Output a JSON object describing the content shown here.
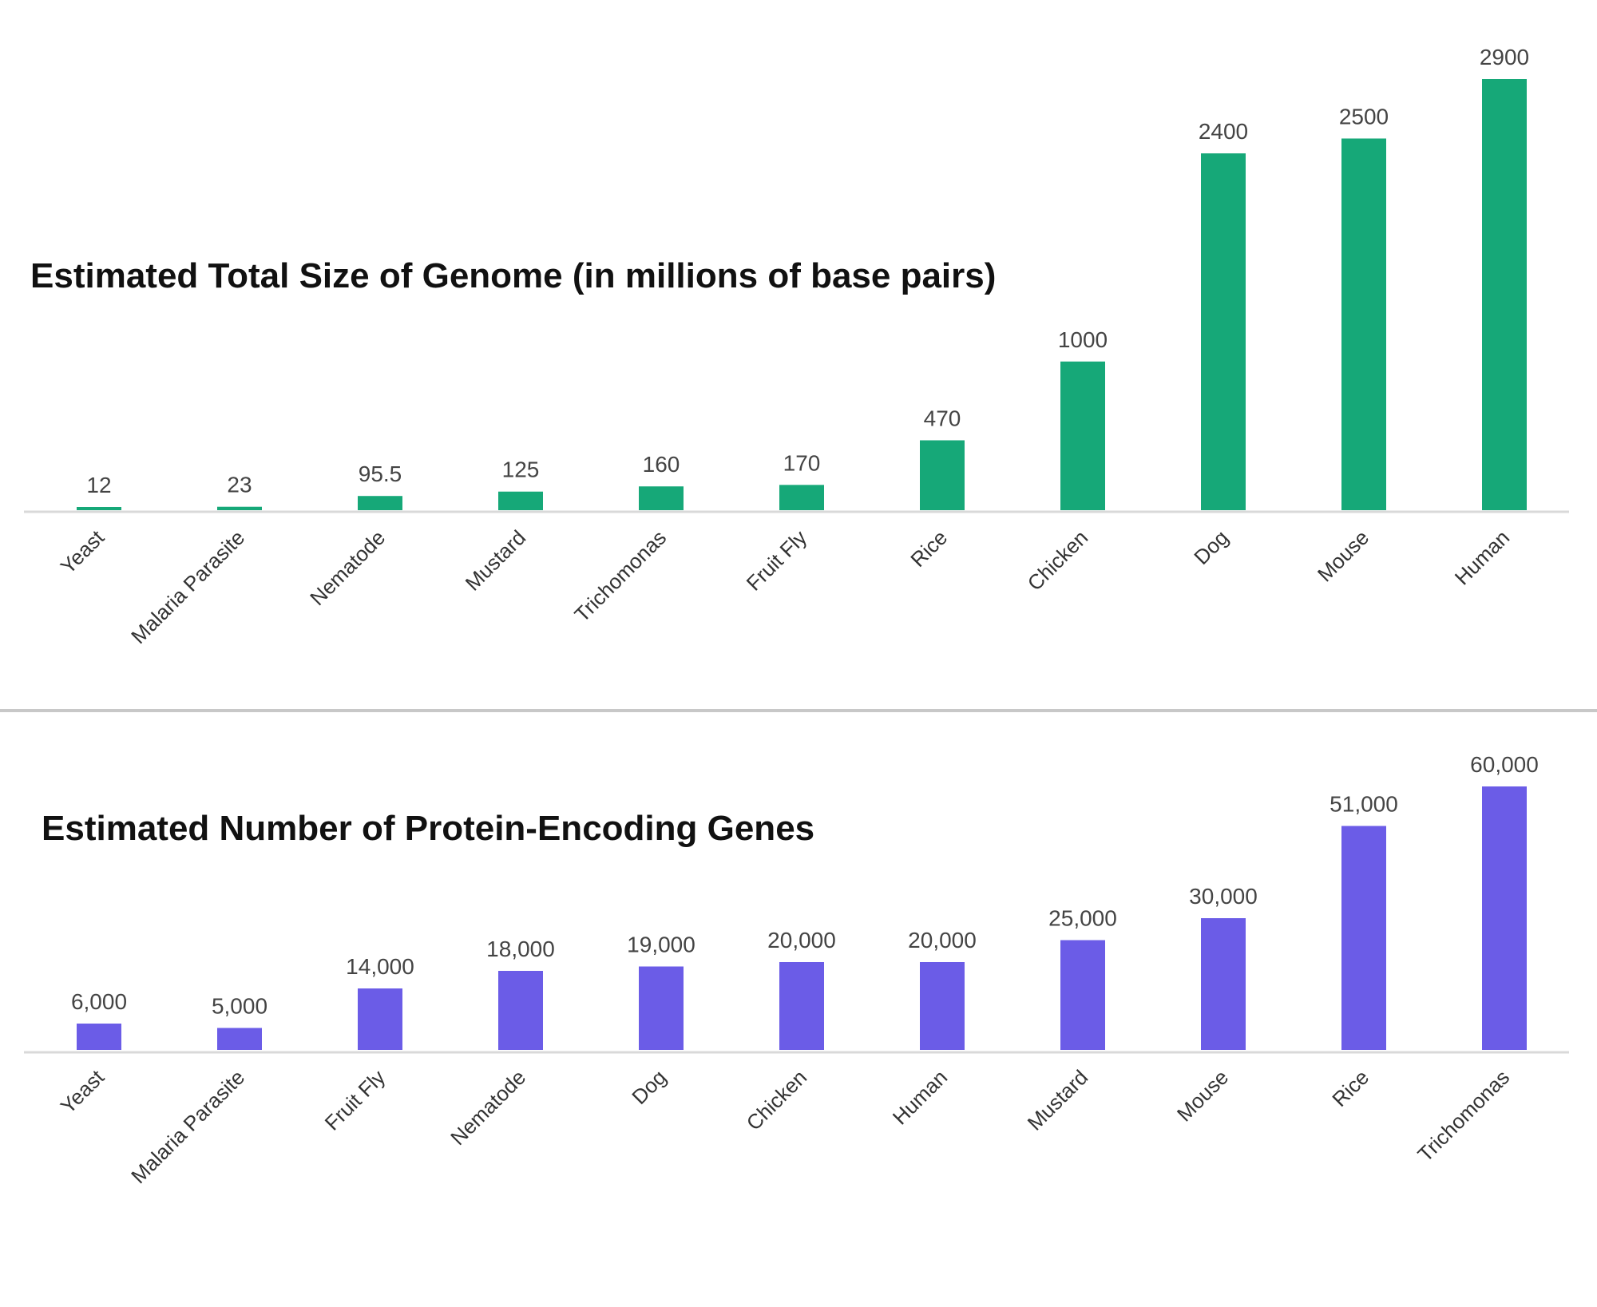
{
  "chart_data": [
    {
      "type": "bar",
      "title": "Estimated Total Size of Genome (in millions of base pairs)",
      "categories": [
        "Yeast",
        "Malaria Parasite",
        "Nematode",
        "Mustard",
        "Trichomonas",
        "Fruit Fly",
        "Rice",
        "Chicken",
        "Dog",
        "Mouse",
        "Human"
      ],
      "values": [
        12,
        23,
        95.5,
        125,
        160,
        170,
        470,
        1000,
        2400,
        2500,
        2900
      ],
      "value_labels": [
        "12",
        "23",
        "95.5",
        "125",
        "160",
        "170",
        "470",
        "1000",
        "2400",
        "2500",
        "2900"
      ],
      "xlabel": "",
      "ylabel": "",
      "ylim": [
        0,
        2900
      ],
      "grid": false,
      "color": "#16a878"
    },
    {
      "type": "bar",
      "title": "Estimated Number of Protein-Encoding Genes",
      "categories": [
        "Yeast",
        "Malaria Parasite",
        "Fruit Fly",
        "Nematode",
        "Dog",
        "Chicken",
        "Human",
        "Mustard",
        "Mouse",
        "Rice",
        "Trichomonas"
      ],
      "values": [
        6000,
        5000,
        14000,
        18000,
        19000,
        20000,
        20000,
        25000,
        30000,
        51000,
        60000
      ],
      "value_labels": [
        "6,000",
        "5,000",
        "14,000",
        "18,000",
        "19,000",
        "20,000",
        "20,000",
        "25,000",
        "30,000",
        "51,000",
        "60,000"
      ],
      "xlabel": "",
      "ylabel": "",
      "ylim": [
        0,
        60000
      ],
      "grid": false,
      "color": "#6b5ce7"
    }
  ]
}
